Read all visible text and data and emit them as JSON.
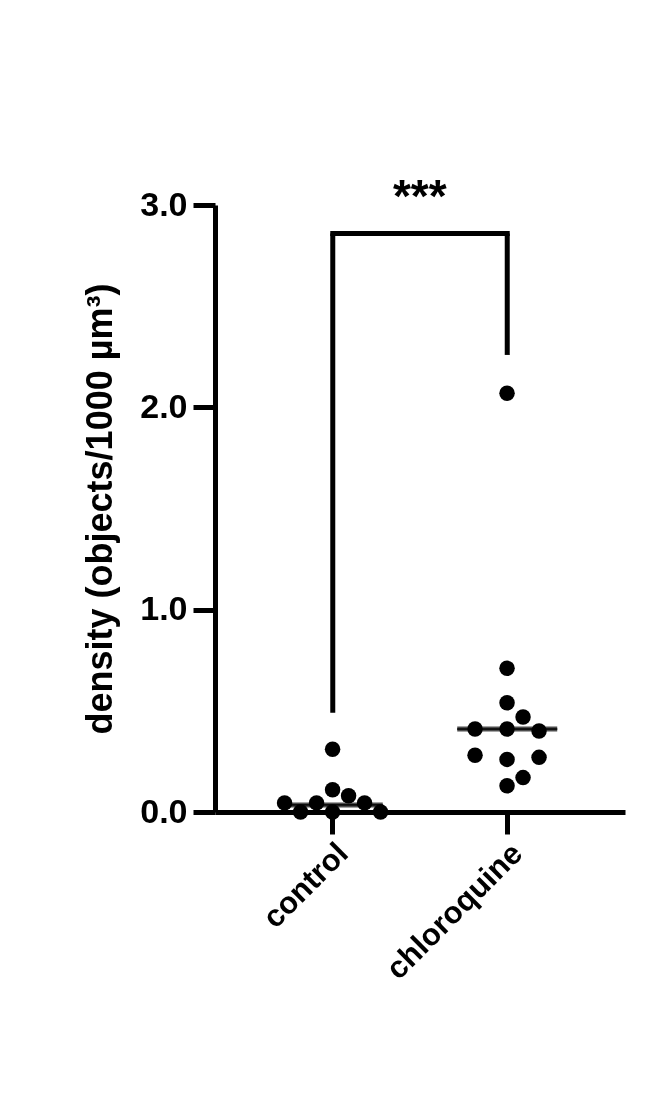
{
  "chart_data": {
    "type": "scatter",
    "ylabel": "density (objects/1000 µm³)",
    "categories": [
      "control",
      "chloroquine"
    ],
    "ylim": [
      0,
      3
    ],
    "yticks": [
      {
        "value": 0,
        "label": "0.0"
      },
      {
        "value": 1,
        "label": "1.0"
      },
      {
        "value": 2,
        "label": "2.0"
      },
      {
        "value": 3,
        "label": "3.0"
      }
    ],
    "grid": false,
    "marker": "circle",
    "annotations": [
      "***"
    ],
    "series": [
      {
        "color": "#000000",
        "x": [
          "control",
          "control",
          "control",
          "control",
          "control",
          "control",
          "control",
          "control",
          "control",
          "chloroquine",
          "chloroquine",
          "chloroquine",
          "chloroquine",
          "chloroquine",
          "chloroquine",
          "chloroquine",
          "chloroquine",
          "chloroquine",
          "chloroquine",
          "chloroquine",
          "chloroquine"
        ],
        "values": [
          0.0,
          0.08,
          0.045,
          0.31,
          0.045,
          0.11,
          0.0,
          0.045,
          0.0,
          2.07,
          0.71,
          0.54,
          0.41,
          0.4,
          0.47,
          0.41,
          0.26,
          0.27,
          0.28,
          0.13,
          0.17
        ]
      },
      {
        "type": "box",
        "color": "#000000",
        "boxes": [
          {
            "low": 0.035,
            "q1": 0.035,
            "median": 0.035,
            "q3": 0.035,
            "high": 0.035
          },
          {
            "low": 0.41,
            "q1": 0.41,
            "median": 0.41,
            "q3": 0.41,
            "high": 0.41
          }
        ]
      }
    ]
  }
}
